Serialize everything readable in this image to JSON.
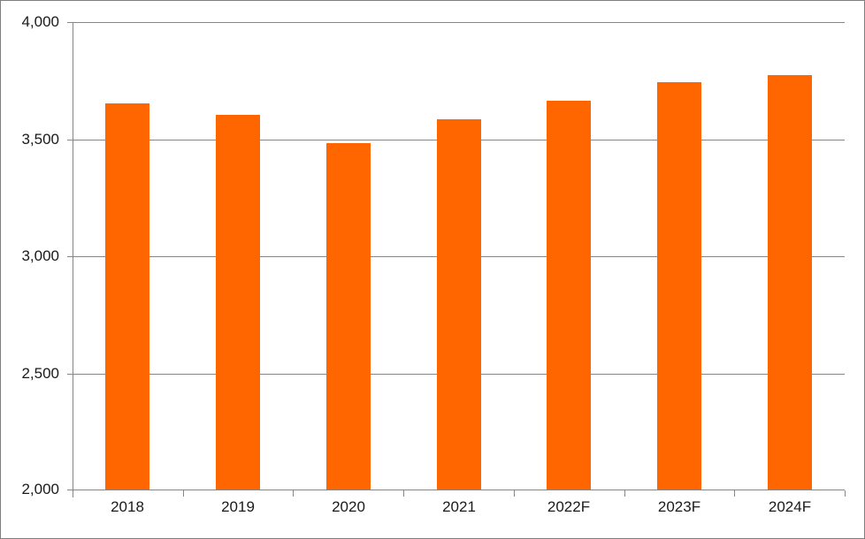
{
  "chart_data": {
    "type": "bar",
    "categories": [
      "2018",
      "2019",
      "2020",
      "2021",
      "2022F",
      "2023F",
      "2024F"
    ],
    "values": [
      3650,
      3600,
      3480,
      3580,
      3660,
      3740,
      3770
    ],
    "title": "",
    "xlabel": "",
    "ylabel": "",
    "ylim": [
      2000,
      4000
    ],
    "yticks": [
      2000,
      2500,
      3000,
      3500,
      4000
    ],
    "ytick_labels": [
      "2,000",
      "2,500",
      "3,000",
      "3,500",
      "4,000"
    ],
    "grid": true,
    "legend": false,
    "colors": {
      "bar": "#FF6600",
      "gridline": "#868686",
      "axis": "#868686",
      "text": "#1a1a1a",
      "border": "#7f7f7f",
      "background": "#ffffff"
    }
  }
}
